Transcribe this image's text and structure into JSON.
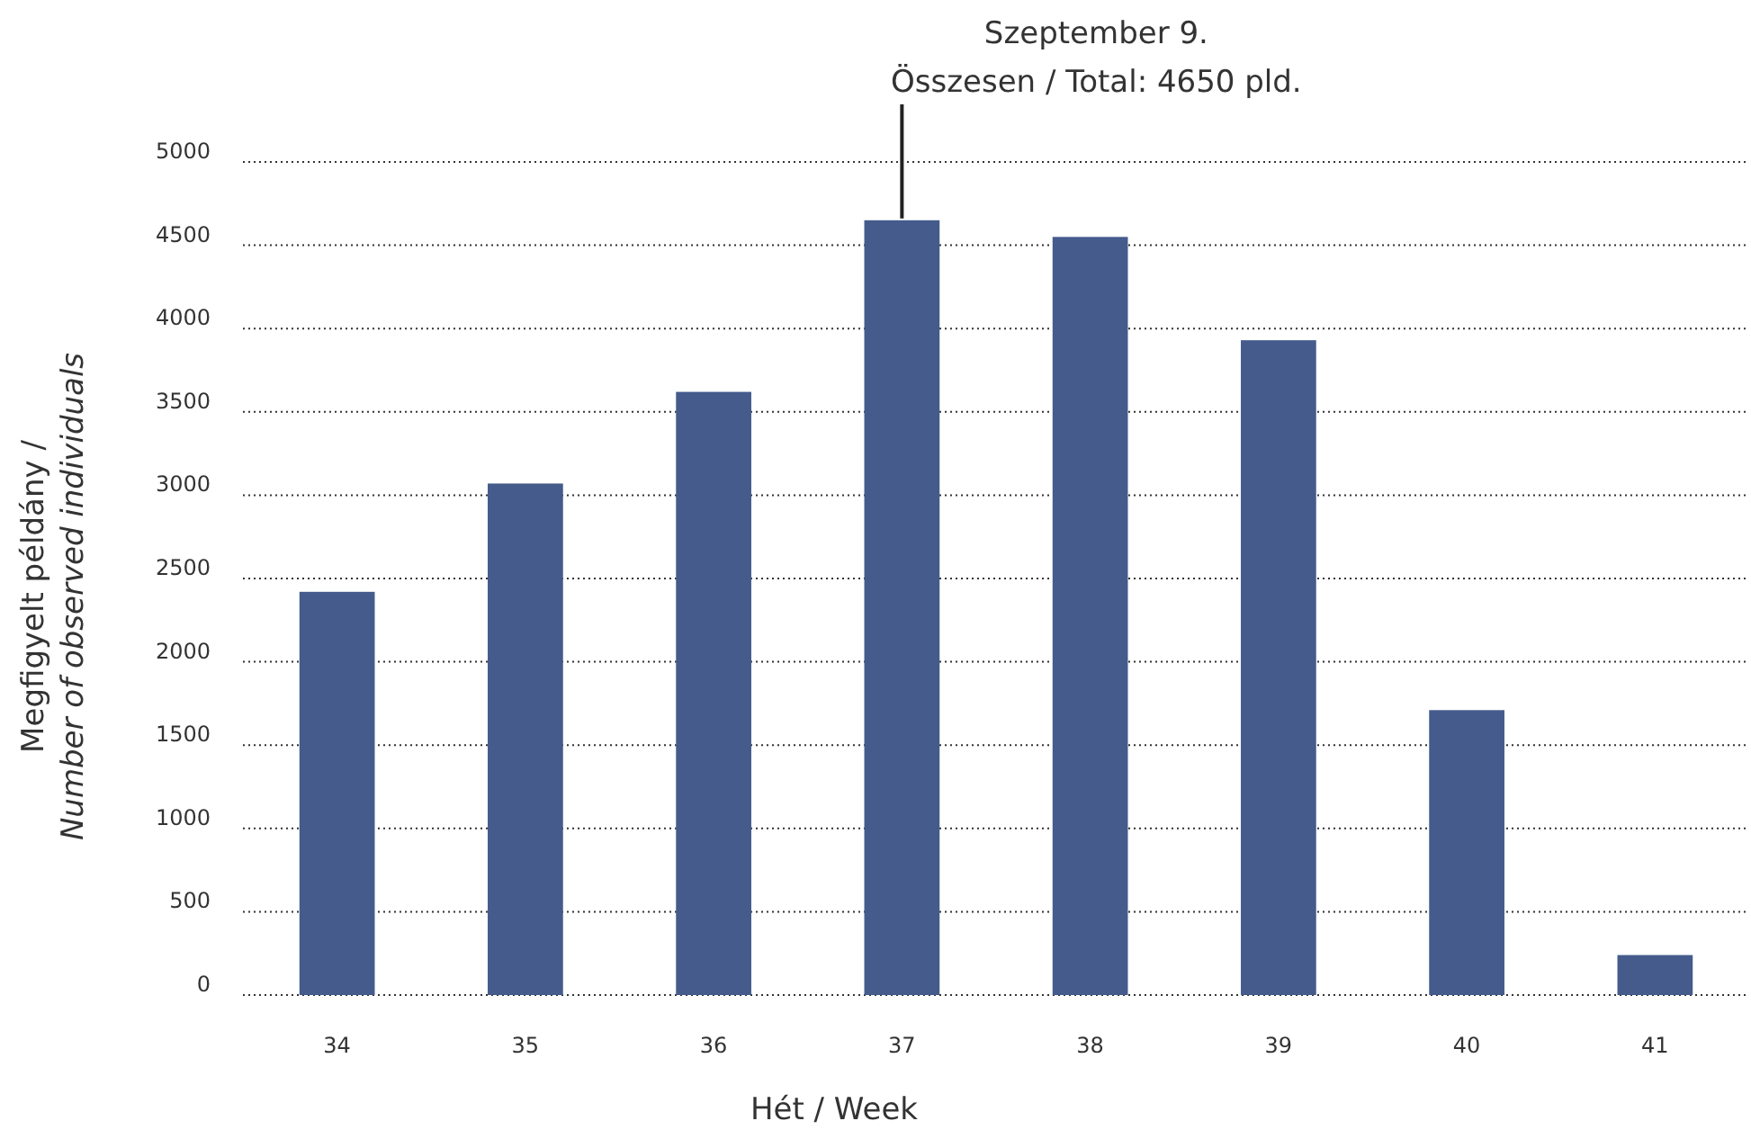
{
  "chart_data": {
    "type": "bar",
    "xlabel": "Hét / Week",
    "ylabel": "Megfigyelt példány /\nNumber of observed individuals",
    "categories": [
      "34",
      "35",
      "36",
      "37",
      "38",
      "39",
      "40",
      "41"
    ],
    "values": [
      2420,
      3070,
      3620,
      4650,
      4550,
      3930,
      1710,
      240
    ],
    "color": "#445b8c",
    "ylim": [
      0,
      5000
    ],
    "yticks": [
      0,
      500,
      1000,
      1500,
      2000,
      2500,
      3000,
      3500,
      4000,
      4500,
      5000
    ],
    "grid": "y",
    "annotations": [
      {
        "text": "Szeptember 9.\nÖsszesen / Total: 4650 pld.",
        "x": "37",
        "y": 4650
      }
    ]
  }
}
